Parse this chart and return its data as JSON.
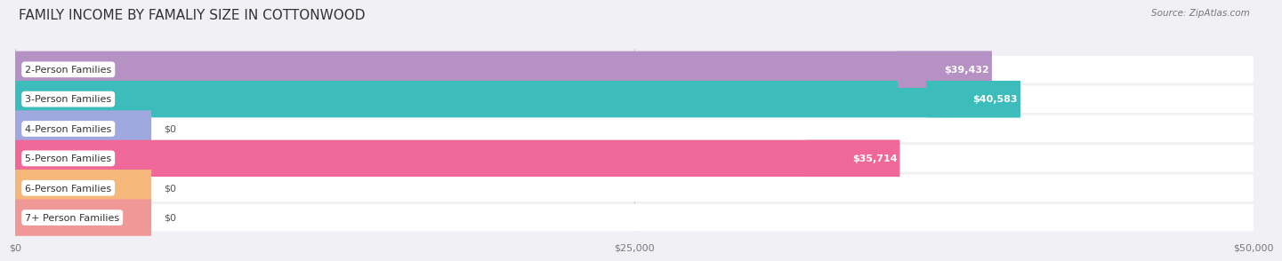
{
  "title": "FAMILY INCOME BY FAMALIY SIZE IN COTTONWOOD",
  "source": "Source: ZipAtlas.com",
  "categories": [
    "2-Person Families",
    "3-Person Families",
    "4-Person Families",
    "5-Person Families",
    "6-Person Families",
    "7+ Person Families"
  ],
  "values": [
    39432,
    40583,
    0,
    35714,
    0,
    0
  ],
  "bar_colors": [
    "#b591c4",
    "#3dbcbc",
    "#a0a8e0",
    "#f06898",
    "#f5b87a",
    "#f09898"
  ],
  "value_labels": [
    "$39,432",
    "$40,583",
    "$0",
    "$35,714",
    "$0",
    "$0"
  ],
  "xlim": [
    0,
    50000
  ],
  "xticks": [
    0,
    25000,
    50000
  ],
  "xticklabels": [
    "$0",
    "$25,000",
    "$50,000"
  ],
  "background_color": "#f0f0f5",
  "row_bg_color": "#ffffff",
  "title_fontsize": 11,
  "label_fontsize": 8,
  "value_fontsize": 8,
  "source_fontsize": 7.5,
  "zero_bar_width": 5500
}
